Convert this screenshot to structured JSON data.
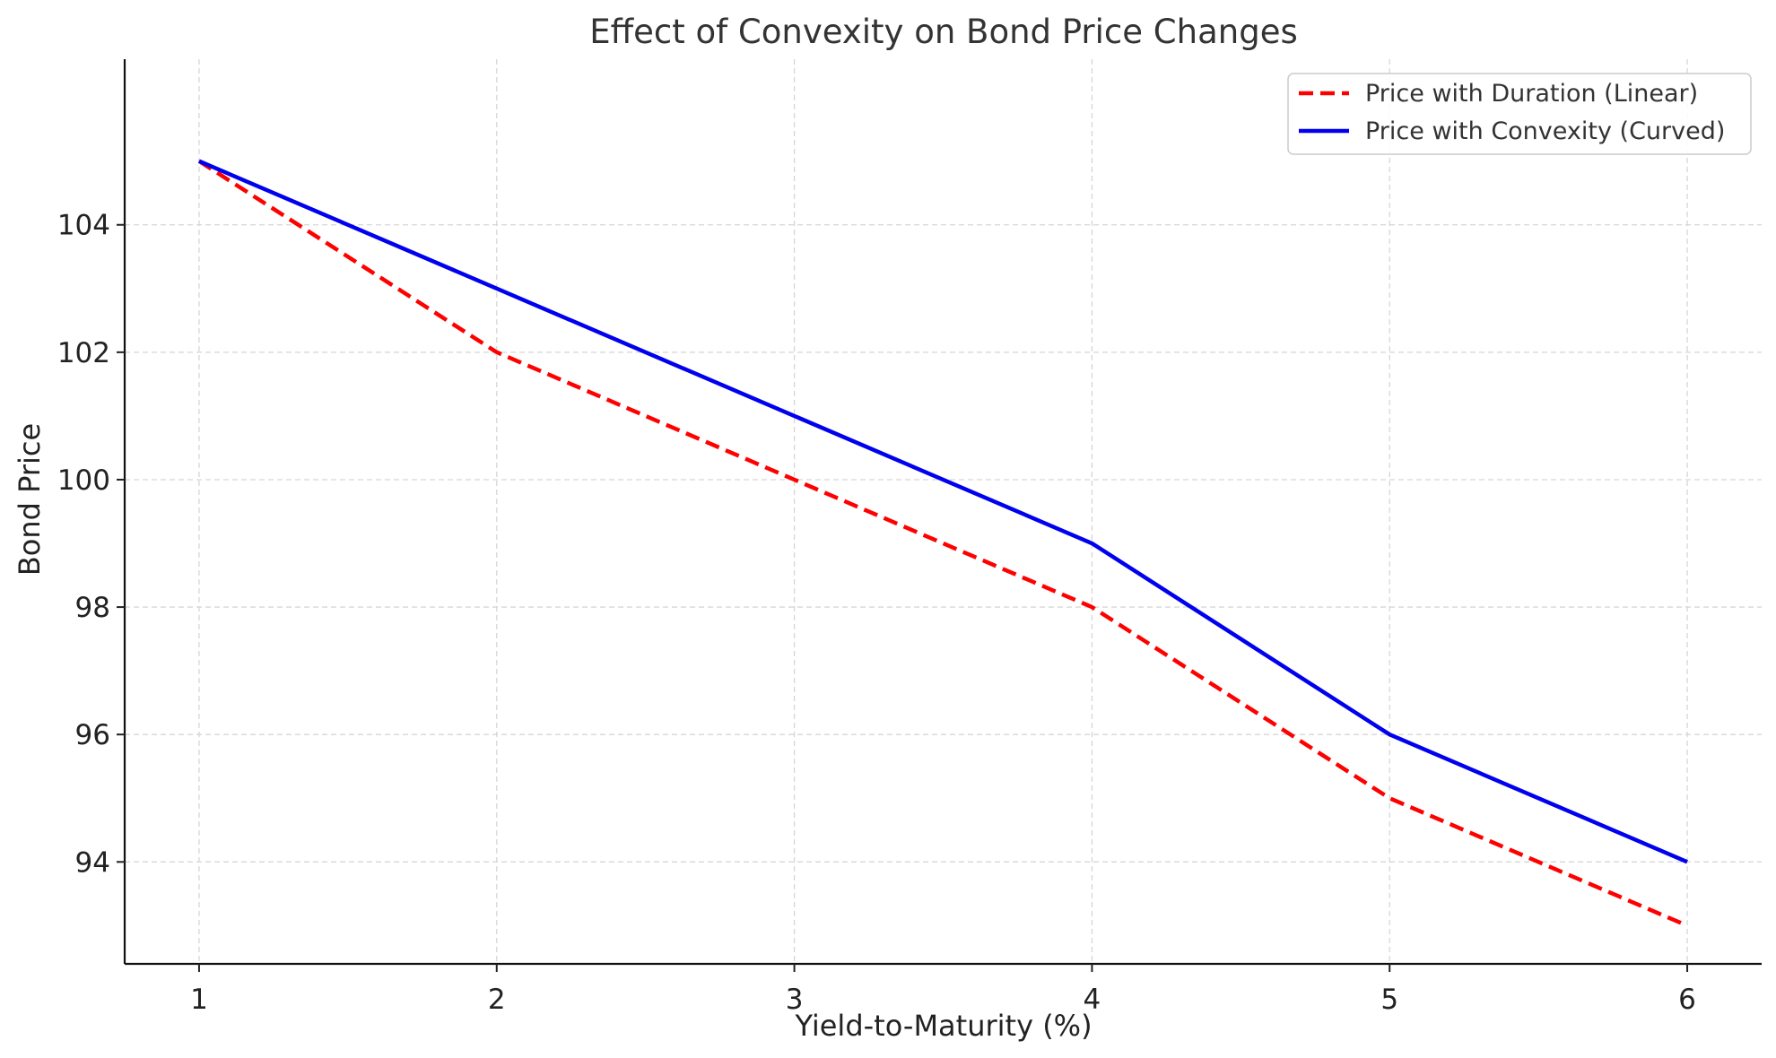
{
  "chart_data": {
    "type": "line",
    "title": "Effect of Convexity on Bond Price Changes",
    "xlabel": "Yield-to-Maturity (%)",
    "ylabel": "Bond Price",
    "x": [
      1,
      2,
      3,
      4,
      5,
      6
    ],
    "x_ticks": [
      1,
      2,
      3,
      4,
      5,
      6
    ],
    "y_ticks": [
      94,
      96,
      98,
      100,
      102,
      104
    ],
    "xlim": [
      0.75,
      6.25
    ],
    "ylim": [
      92.4,
      106.6
    ],
    "grid": true,
    "legend_position": "top-right",
    "series": [
      {
        "name": "Price with Duration (Linear)",
        "values": [
          105,
          102,
          100,
          98,
          95,
          93
        ],
        "color": "#ff0000",
        "style": "dashed"
      },
      {
        "name": "Price with Convexity (Curved)",
        "values": [
          105,
          103,
          101,
          99,
          96,
          94
        ],
        "color": "#0000ee",
        "style": "solid"
      }
    ]
  }
}
